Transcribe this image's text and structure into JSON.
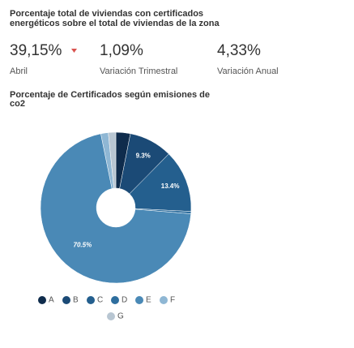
{
  "header": {
    "title_line1": "Porcentaje total de viviendas con certificados",
    "title_line2": "energéticos sobre el total de viviendas de la zona"
  },
  "kpis": [
    {
      "value": "39,15%",
      "label": "Abril"
    },
    {
      "value": "1,09%",
      "label": "Variación Trimestral"
    },
    {
      "value": "4,33%",
      "label": "Variación Anual"
    }
  ],
  "chart_data": {
    "type": "donut",
    "title_line1": "Porcentaje de Certificados según emisiones de",
    "title_line2": "co2",
    "categories": [
      "A",
      "B",
      "C",
      "D",
      "E",
      "F",
      "G"
    ],
    "values": [
      3.1,
      9.3,
      13.4,
      0.5,
      70.5,
      1.6,
      1.6
    ],
    "value_labels": [
      null,
      "9.3%",
      "13.4%",
      null,
      "70.5%",
      null,
      null
    ],
    "colors": [
      "#0f2c4c",
      "#1b4a76",
      "#245f8e",
      "#2e6e9e",
      "#4a89b6",
      "#8fb7d4",
      "#b8c6d2"
    ]
  }
}
